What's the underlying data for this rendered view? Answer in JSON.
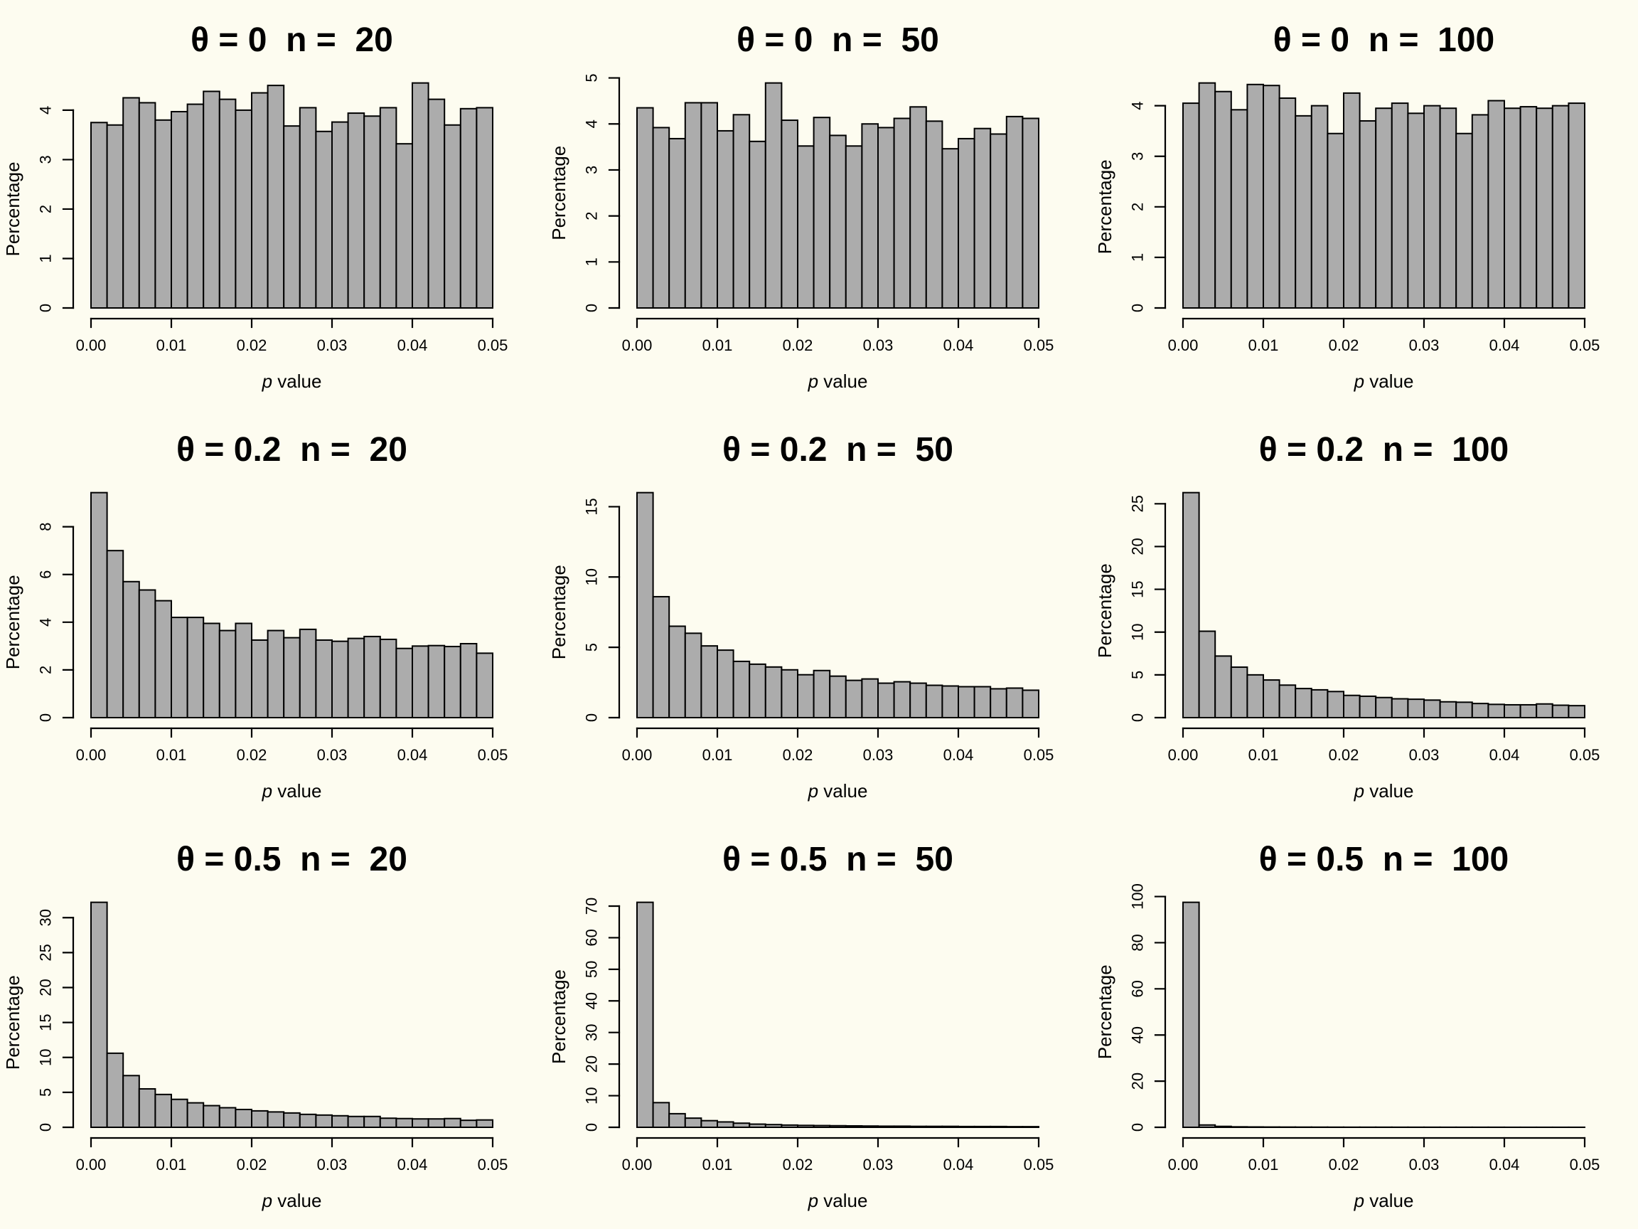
{
  "figure": {
    "background_color": "#fdfcf0",
    "bar_fill_color": "#acacac",
    "bar_stroke_color": "#000000",
    "text_color": "#000000",
    "rows": 3,
    "cols": 3
  },
  "chart_data": [
    {
      "type": "bar",
      "title": "θ = 0  n =  20",
      "theta": "0",
      "n": "20",
      "ylabel": "Percentage",
      "xlabel_italic": "p",
      "xlabel_rest": " value",
      "x_tick_labels": [
        "0.00",
        "0.01",
        "0.02",
        "0.03",
        "0.04",
        "0.05"
      ],
      "x_range": [
        0,
        0.05
      ],
      "bin_width": 0.002,
      "y_ticks": [
        0,
        1,
        2,
        3,
        4
      ],
      "values": [
        3.75,
        3.7,
        4.25,
        4.15,
        3.8,
        3.97,
        4.12,
        4.38,
        4.22,
        4.0,
        4.35,
        4.5,
        3.68,
        4.05,
        3.57,
        3.76,
        3.94,
        3.88,
        4.05,
        3.32,
        4.55,
        4.22,
        3.7,
        4.03,
        4.05
      ]
    },
    {
      "type": "bar",
      "title": "θ = 0  n =  50",
      "theta": "0",
      "n": "50",
      "ylabel": "Percentage",
      "xlabel_italic": "p",
      "xlabel_rest": " value",
      "x_tick_labels": [
        "0.00",
        "0.01",
        "0.02",
        "0.03",
        "0.04",
        "0.05"
      ],
      "x_range": [
        0,
        0.05
      ],
      "bin_width": 0.002,
      "y_ticks": [
        0,
        1,
        2,
        3,
        4,
        5
      ],
      "values": [
        4.35,
        3.92,
        3.68,
        4.46,
        4.46,
        3.85,
        4.2,
        3.62,
        4.89,
        4.08,
        3.52,
        4.14,
        3.75,
        3.52,
        4.0,
        3.92,
        4.12,
        4.37,
        4.06,
        3.46,
        3.68,
        3.9,
        3.78,
        4.16,
        4.12
      ]
    },
    {
      "type": "bar",
      "title": "θ = 0  n =  100",
      "theta": "0",
      "n": "100",
      "ylabel": "Percentage",
      "xlabel_italic": "p",
      "xlabel_rest": " value",
      "x_tick_labels": [
        "0.00",
        "0.01",
        "0.02",
        "0.03",
        "0.04",
        "0.05"
      ],
      "x_range": [
        0,
        0.05
      ],
      "bin_width": 0.002,
      "y_ticks": [
        0,
        1,
        2,
        3,
        4
      ],
      "values": [
        4.05,
        4.45,
        4.28,
        3.92,
        4.42,
        4.4,
        4.15,
        3.8,
        4.0,
        3.45,
        4.25,
        3.7,
        3.95,
        4.05,
        3.85,
        4.0,
        3.95,
        3.45,
        3.82,
        4.1,
        3.95,
        3.98,
        3.95,
        4.0,
        4.05
      ]
    },
    {
      "type": "bar",
      "title": "θ = 0.2  n =  20",
      "theta": "0.2",
      "n": "20",
      "ylabel": "Percentage",
      "xlabel_italic": "p",
      "xlabel_rest": " value",
      "x_tick_labels": [
        "0.00",
        "0.01",
        "0.02",
        "0.03",
        "0.04",
        "0.05"
      ],
      "x_range": [
        0,
        0.05
      ],
      "bin_width": 0.002,
      "y_ticks": [
        0,
        2,
        4,
        6,
        8
      ],
      "values": [
        9.43,
        7.0,
        5.7,
        5.35,
        4.9,
        4.2,
        4.2,
        3.95,
        3.65,
        3.95,
        3.25,
        3.65,
        3.35,
        3.7,
        3.25,
        3.2,
        3.32,
        3.4,
        3.28,
        2.9,
        3.0,
        3.02,
        2.98,
        3.1,
        2.7
      ]
    },
    {
      "type": "bar",
      "title": "θ = 0.2  n =  50",
      "theta": "0.2",
      "n": "50",
      "ylabel": "Percentage",
      "xlabel_italic": "p",
      "xlabel_rest": " value",
      "x_tick_labels": [
        "0.00",
        "0.01",
        "0.02",
        "0.03",
        "0.04",
        "0.05"
      ],
      "x_range": [
        0,
        0.05
      ],
      "bin_width": 0.002,
      "y_ticks": [
        0,
        5,
        10,
        15
      ],
      "values": [
        16.0,
        8.6,
        6.5,
        6.0,
        5.1,
        4.8,
        4.0,
        3.8,
        3.6,
        3.4,
        3.05,
        3.35,
        2.95,
        2.65,
        2.75,
        2.45,
        2.55,
        2.45,
        2.3,
        2.25,
        2.2,
        2.2,
        2.05,
        2.1,
        1.95
      ]
    },
    {
      "type": "bar",
      "title": "θ = 0.2  n =  100",
      "theta": "0.2",
      "n": "100",
      "ylabel": "Percentage",
      "xlabel_italic": "p",
      "xlabel_rest": " value",
      "x_tick_labels": [
        "0.00",
        "0.01",
        "0.02",
        "0.03",
        "0.04",
        "0.05"
      ],
      "x_range": [
        0,
        0.05
      ],
      "bin_width": 0.002,
      "y_ticks": [
        0,
        5,
        10,
        15,
        20,
        25
      ],
      "values": [
        26.3,
        10.1,
        7.2,
        5.9,
        5.0,
        4.4,
        3.8,
        3.4,
        3.25,
        3.05,
        2.6,
        2.5,
        2.35,
        2.2,
        2.15,
        2.05,
        1.85,
        1.8,
        1.65,
        1.55,
        1.5,
        1.5,
        1.6,
        1.45,
        1.4
      ]
    },
    {
      "type": "bar",
      "title": "θ = 0.5  n =  20",
      "theta": "0.5",
      "n": "20",
      "ylabel": "Percentage",
      "xlabel_italic": "p",
      "xlabel_rest": " value",
      "x_tick_labels": [
        "0.00",
        "0.01",
        "0.02",
        "0.03",
        "0.04",
        "0.05"
      ],
      "x_range": [
        0,
        0.05
      ],
      "bin_width": 0.002,
      "y_ticks": [
        0,
        5,
        10,
        15,
        20,
        25,
        30
      ],
      "values": [
        32.2,
        10.6,
        7.4,
        5.5,
        4.7,
        4.0,
        3.5,
        3.1,
        2.8,
        2.55,
        2.35,
        2.2,
        2.05,
        1.85,
        1.75,
        1.65,
        1.55,
        1.55,
        1.3,
        1.25,
        1.2,
        1.2,
        1.25,
        1.0,
        1.05
      ]
    },
    {
      "type": "bar",
      "title": "θ = 0.5  n =  50",
      "theta": "0.5",
      "n": "50",
      "ylabel": "Percentage",
      "xlabel_italic": "p",
      "xlabel_rest": " value",
      "x_tick_labels": [
        "0.00",
        "0.01",
        "0.02",
        "0.03",
        "0.04",
        "0.05"
      ],
      "x_range": [
        0,
        0.05
      ],
      "bin_width": 0.002,
      "y_ticks": [
        0,
        10,
        20,
        30,
        40,
        50,
        60,
        70
      ],
      "values": [
        71.2,
        7.8,
        4.3,
        2.9,
        2.1,
        1.7,
        1.3,
        1.0,
        0.85,
        0.7,
        0.6,
        0.55,
        0.5,
        0.45,
        0.4,
        0.35,
        0.35,
        0.3,
        0.3,
        0.3,
        0.25,
        0.25,
        0.25,
        0.2,
        0.2
      ]
    },
    {
      "type": "bar",
      "title": "θ = 0.5  n =  100",
      "theta": "0.5",
      "n": "100",
      "ylabel": "Percentage",
      "xlabel_italic": "p",
      "xlabel_rest": " value",
      "x_tick_labels": [
        "0.00",
        "0.01",
        "0.02",
        "0.03",
        "0.04",
        "0.05"
      ],
      "x_range": [
        0,
        0.05
      ],
      "bin_width": 0.002,
      "y_ticks": [
        0,
        20,
        40,
        60,
        80,
        100
      ],
      "values": [
        97.5,
        1.0,
        0.4,
        0.2,
        0.15,
        0.12,
        0.1,
        0.08,
        0.07,
        0.06,
        0.05,
        0.05,
        0.05,
        0.04,
        0.04,
        0.04,
        0.03,
        0.03,
        0.03,
        0.03,
        0.02,
        0.02,
        0.02,
        0.02,
        0.02
      ]
    }
  ]
}
